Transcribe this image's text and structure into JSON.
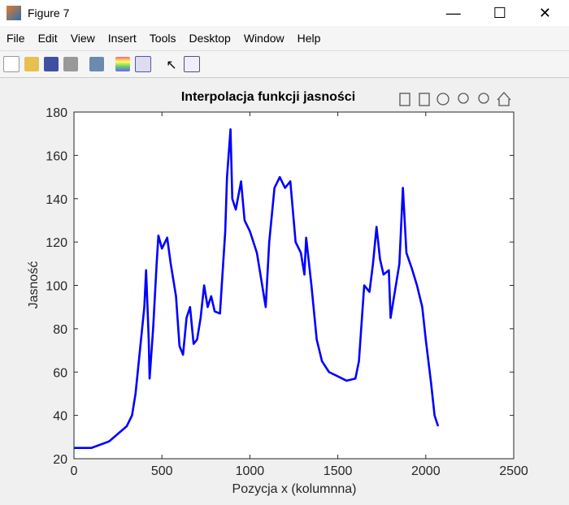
{
  "window_title": "Figure 7",
  "menu": [
    "File",
    "Edit",
    "View",
    "Insert",
    "Tools",
    "Desktop",
    "Window",
    "Help"
  ],
  "chart_data": {
    "type": "line",
    "title": "Interpolacja funkcji jasności",
    "x_label": "Pozycja x (kolumnna)",
    "y_label": "Jasność",
    "xlim": [
      0,
      2500
    ],
    "ylim": [
      20,
      180
    ],
    "xticks": [
      0,
      500,
      1000,
      1500,
      2000,
      2500
    ],
    "yticks": [
      20,
      40,
      60,
      80,
      100,
      120,
      140,
      160,
      180
    ],
    "x": [
      0,
      100,
      200,
      300,
      330,
      350,
      375,
      400,
      410,
      425,
      430,
      450,
      470,
      480,
      500,
      530,
      550,
      580,
      600,
      620,
      640,
      660,
      680,
      700,
      720,
      740,
      760,
      780,
      800,
      830,
      860,
      870,
      890,
      900,
      920,
      950,
      970,
      1000,
      1040,
      1080,
      1090,
      1110,
      1140,
      1170,
      1200,
      1230,
      1260,
      1290,
      1310,
      1320,
      1350,
      1380,
      1410,
      1450,
      1500,
      1550,
      1600,
      1620,
      1650,
      1680,
      1700,
      1720,
      1740,
      1760,
      1790,
      1800,
      1820,
      1850,
      1870,
      1890,
      1920,
      1950,
      1980,
      2000,
      2030,
      2050,
      2070
    ],
    "series": [
      {
        "color": "#0000ff",
        "values": [
          25,
          25,
          28,
          35,
          40,
          50,
          70,
          90,
          107,
          75,
          57,
          80,
          110,
          123,
          117,
          122,
          110,
          95,
          72,
          68,
          85,
          90,
          73,
          75,
          85,
          100,
          90,
          95,
          88,
          87,
          125,
          150,
          172,
          140,
          135,
          148,
          130,
          125,
          115,
          95,
          90,
          120,
          145,
          150,
          145,
          148,
          120,
          115,
          105,
          122,
          100,
          75,
          65,
          60,
          58,
          56,
          57,
          65,
          100,
          97,
          110,
          127,
          112,
          105,
          107,
          85,
          95,
          110,
          145,
          115,
          108,
          100,
          90,
          75,
          55,
          40,
          35
        ]
      }
    ]
  }
}
